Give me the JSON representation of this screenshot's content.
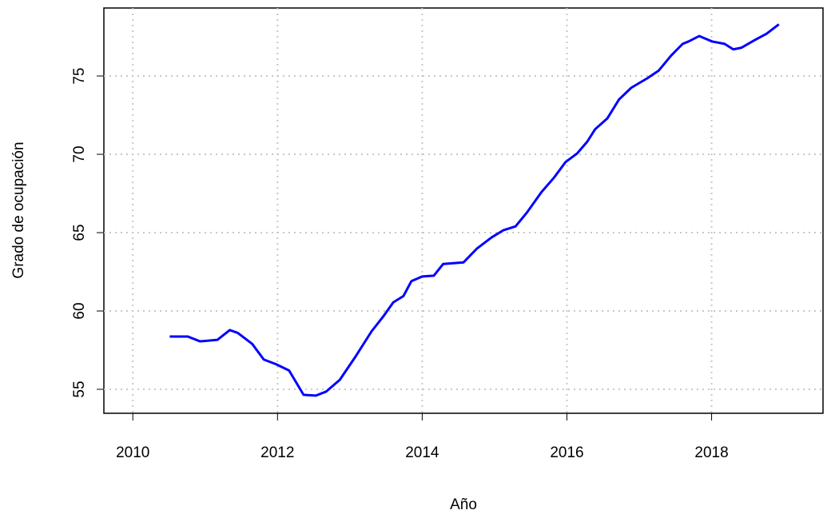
{
  "chart_data": {
    "type": "line",
    "x_label": "Año",
    "y_label": "Grado de ocupación",
    "x": [
      2010.51,
      2010.76,
      2010.93,
      2011.17,
      2011.34,
      2011.45,
      2011.65,
      2011.81,
      2011.98,
      2012.16,
      2012.36,
      2012.53,
      2012.67,
      2012.86,
      2013.08,
      2013.3,
      2013.47,
      2013.6,
      2013.74,
      2013.85,
      2014.0,
      2014.16,
      2014.29,
      2014.57,
      2014.76,
      2014.96,
      2015.12,
      2015.29,
      2015.45,
      2015.65,
      2015.82,
      2015.98,
      2016.14,
      2016.28,
      2016.39,
      2016.56,
      2016.72,
      2016.89,
      2017.11,
      2017.27,
      2017.44,
      2017.6,
      2017.68,
      2017.83,
      2018.01,
      2018.18,
      2018.3,
      2018.41,
      2018.6,
      2018.76,
      2018.93
    ],
    "series": [
      {
        "color": "#0000ff",
        "values": [
          58.37,
          58.37,
          58.06,
          58.16,
          58.78,
          58.6,
          57.9,
          56.9,
          56.6,
          56.2,
          54.65,
          54.6,
          54.85,
          55.6,
          57.1,
          58.7,
          59.7,
          60.55,
          60.95,
          61.9,
          62.2,
          62.25,
          63.0,
          63.1,
          64.0,
          64.7,
          65.15,
          65.4,
          66.3,
          67.6,
          68.5,
          69.5,
          70.05,
          70.8,
          71.6,
          72.3,
          73.5,
          74.25,
          74.85,
          75.35,
          76.3,
          77.05,
          77.2,
          77.55,
          77.2,
          77.05,
          76.7,
          76.8,
          77.3,
          77.7,
          78.3
        ]
      }
    ],
    "xlim": [
      2009.6,
      2019.54
    ],
    "xticks": [
      2010,
      2012,
      2014,
      2016,
      2018
    ],
    "ylim": [
      53.47,
      79.34
    ],
    "yticks": [
      55,
      60,
      65,
      70,
      75
    ],
    "grid": true
  }
}
